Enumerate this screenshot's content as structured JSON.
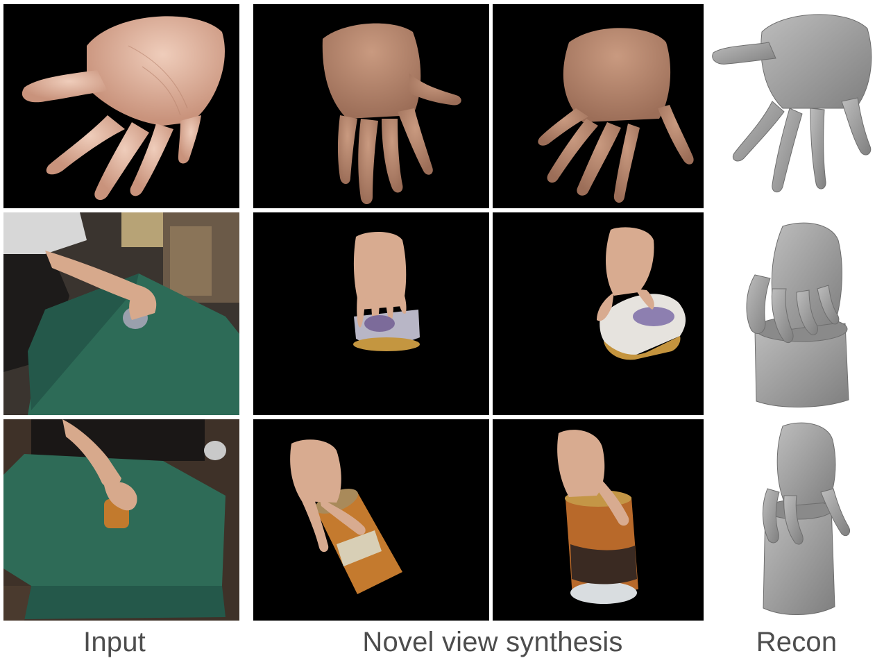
{
  "figure": {
    "columns": [
      {
        "label": "Input"
      },
      {
        "label": "Novel view synthesis"
      },
      {
        "label": "Recon"
      }
    ],
    "rows": [
      {
        "input": "open-palm-hand-photo",
        "views": [
          "hand-back-view-1",
          "hand-back-view-2"
        ],
        "recon": "hand-mesh"
      },
      {
        "input": "hand-grasping-can-on-green-table",
        "views": [
          "hand-can-view-1",
          "hand-can-view-2"
        ],
        "recon": "hand-can-mesh"
      },
      {
        "input": "hand-grasping-tall-can-on-green-table",
        "views": [
          "hand-tall-can-view-1",
          "hand-tall-can-view-2"
        ],
        "recon": "hand-tall-can-mesh"
      }
    ],
    "colors": {
      "skin": "#d9a98f",
      "table_cloth": "#2d6b57",
      "mesh_gray": "#9a9a9a",
      "background_black": "#000000"
    }
  }
}
